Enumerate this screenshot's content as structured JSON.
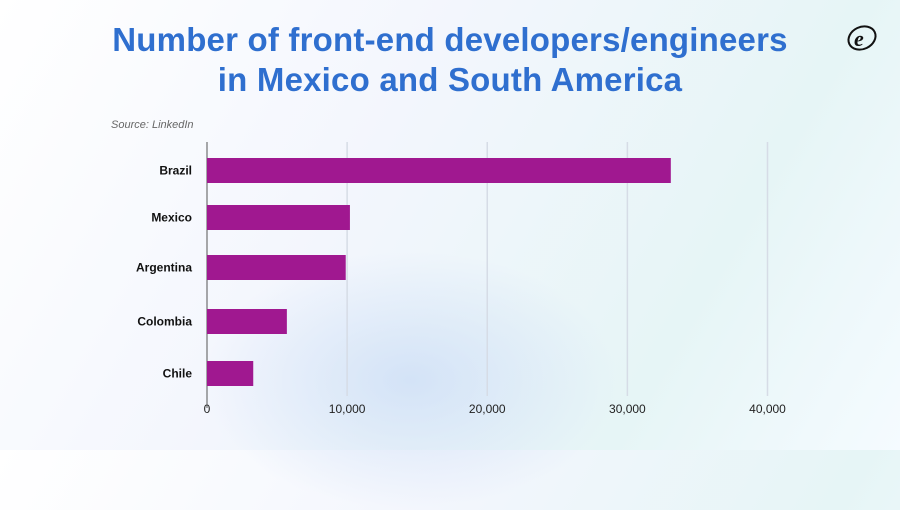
{
  "title_lines": [
    "Number of front-end developers/engineers",
    "in Mexico and South America"
  ],
  "source": "Source: LinkedIn",
  "logo_text": "e",
  "chart_data": {
    "type": "bar",
    "orientation": "horizontal",
    "title": "Number of front-end developers/engineers in Mexico and South America",
    "categories": [
      "Brazil",
      "Mexico",
      "Argentina",
      "Colombia",
      "Chile"
    ],
    "values": [
      33100,
      10200,
      9900,
      5700,
      3300
    ],
    "xlim": [
      0,
      40000
    ],
    "x_ticks": [
      0,
      10000,
      20000,
      30000,
      40000
    ],
    "x_tick_labels": [
      "0",
      "10,000",
      "20,000",
      "30,000",
      "40,000"
    ],
    "xlabel": "",
    "ylabel": "",
    "grid": "vertical",
    "bar_color": "#a01890",
    "title_color": "#2f6fcf"
  }
}
